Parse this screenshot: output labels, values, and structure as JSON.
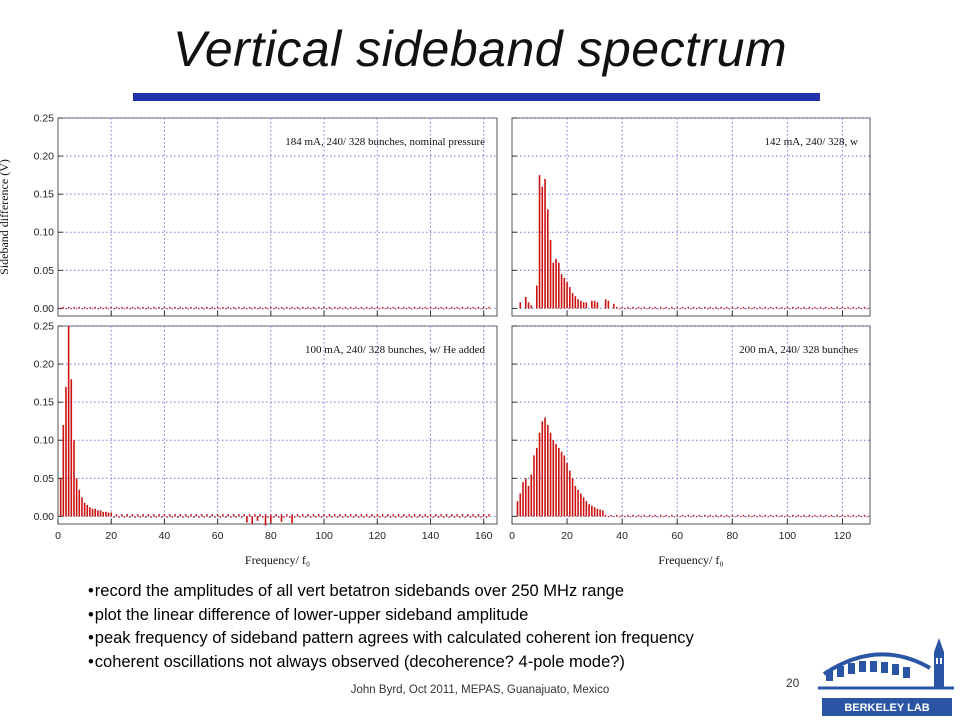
{
  "slide": {
    "title": "Vertical sideband spectrum",
    "bullets": [
      "record the amplitudes of all vert betatron sidebands over 250 MHz range",
      "plot the linear difference of lower-upper sideband amplitude",
      "peak frequency of sideband pattern agrees with calculated coherent ion frequency",
      "coherent oscillations not always observed (decoherence? 4-pole mode?)"
    ],
    "footer": "John Byrd, Oct 2011, MEPAS, Guanajuato, Mexico",
    "page_number": "20",
    "logo_text": "BERKELEY LAB"
  },
  "colors": {
    "bar": "#cc1111",
    "title_rule": "#2233aa",
    "grid": "#6f7ad0"
  },
  "chart_data": [
    {
      "type": "bar",
      "title": "",
      "annotation": "184 mA, 240/ 328 bunches, nominal pressure",
      "xlabel": "",
      "ylabel": "Sideband difference (V)",
      "xlim": [
        0,
        165
      ],
      "ylim": [
        -0.01,
        0.25
      ],
      "yticks": [
        0.0,
        0.05,
        0.1,
        0.15,
        0.2,
        0.25
      ],
      "ytick_labels": [
        "0.00",
        "0.05",
        "0.10",
        "0.15",
        "0.20",
        "0.25"
      ],
      "grid": true,
      "baseline_bars": {
        "x_start": 1,
        "x_end": 162,
        "step": 1,
        "height": 0.002
      },
      "x": [],
      "values": []
    },
    {
      "type": "bar",
      "title": "",
      "annotation": "142 mA, 240/ 328, w",
      "xlabel": "",
      "ylabel": "",
      "xlim": [
        0,
        130
      ],
      "ylim": [
        -0.01,
        0.25
      ],
      "yticks": [
        0.0,
        0.05,
        0.1,
        0.15,
        0.2,
        0.25
      ],
      "grid": true,
      "baseline_bars": {
        "x_start": 38,
        "x_end": 129,
        "step": 1,
        "height": 0.002
      },
      "x": [
        3,
        5,
        6,
        7,
        9,
        10,
        11,
        12,
        13,
        14,
        15,
        16,
        17,
        18,
        19,
        20,
        21,
        22,
        23,
        24,
        25,
        26,
        27,
        29,
        30,
        31,
        34,
        35,
        37
      ],
      "values": [
        0.008,
        0.015,
        0.008,
        0.004,
        0.03,
        0.175,
        0.16,
        0.17,
        0.13,
        0.09,
        0.06,
        0.065,
        0.06,
        0.045,
        0.04,
        0.035,
        0.028,
        0.02,
        0.016,
        0.012,
        0.01,
        0.008,
        0.008,
        0.01,
        0.01,
        0.008,
        0.012,
        0.01,
        0.006
      ]
    },
    {
      "type": "bar",
      "title": "",
      "annotation": "100 mA, 240/ 328 bunches, w/ He added",
      "xlabel": "Frequency/ f₀",
      "ylabel": "",
      "xlim": [
        0,
        165
      ],
      "ylim": [
        -0.01,
        0.25
      ],
      "yticks": [
        0.0,
        0.05,
        0.1,
        0.15,
        0.2,
        0.25
      ],
      "ytick_labels": [
        "0.00",
        "0.05",
        "0.10",
        "0.15",
        "0.20",
        "0.25"
      ],
      "xticks": [
        0,
        20,
        40,
        60,
        80,
        100,
        120,
        140,
        160
      ],
      "grid": true,
      "baseline_bars": {
        "x_start": 21,
        "x_end": 162,
        "step": 1,
        "height": 0.003
      },
      "x": [
        1,
        2,
        3,
        4,
        5,
        6,
        7,
        8,
        9,
        10,
        11,
        12,
        13,
        14,
        15,
        16,
        17,
        18,
        19,
        20,
        71,
        73,
        75,
        78,
        80,
        84,
        88
      ],
      "values": [
        0.05,
        0.12,
        0.17,
        0.25,
        0.18,
        0.1,
        0.05,
        0.035,
        0.025,
        0.018,
        0.015,
        0.012,
        0.01,
        0.01,
        0.008,
        0.008,
        0.006,
        0.006,
        0.005,
        0.005,
        -0.008,
        -0.01,
        -0.006,
        -0.012,
        -0.008,
        -0.007,
        -0.009
      ]
    },
    {
      "type": "bar",
      "title": "",
      "annotation": "200 mA, 240/ 328 bunches",
      "xlabel": "Frequency/ f₀",
      "ylabel": "",
      "xlim": [
        0,
        130
      ],
      "ylim": [
        -0.01,
        0.25
      ],
      "yticks": [
        0.0,
        0.05,
        0.1,
        0.15,
        0.2,
        0.25
      ],
      "xticks": [
        0,
        20,
        40,
        60,
        80,
        100,
        120
      ],
      "grid": true,
      "baseline_bars": {
        "x_start": 34,
        "x_end": 129,
        "step": 1,
        "height": 0.002
      },
      "x": [
        2,
        3,
        4,
        5,
        6,
        7,
        8,
        9,
        10,
        11,
        12,
        13,
        14,
        15,
        16,
        17,
        18,
        19,
        20,
        21,
        22,
        23,
        24,
        25,
        26,
        27,
        28,
        29,
        30,
        31,
        32,
        33
      ],
      "values": [
        0.02,
        0.03,
        0.045,
        0.05,
        0.04,
        0.055,
        0.08,
        0.09,
        0.11,
        0.125,
        0.13,
        0.12,
        0.11,
        0.1,
        0.095,
        0.09,
        0.085,
        0.08,
        0.07,
        0.06,
        0.05,
        0.04,
        0.035,
        0.03,
        0.025,
        0.02,
        0.016,
        0.014,
        0.012,
        0.01,
        0.009,
        0.008
      ]
    }
  ]
}
